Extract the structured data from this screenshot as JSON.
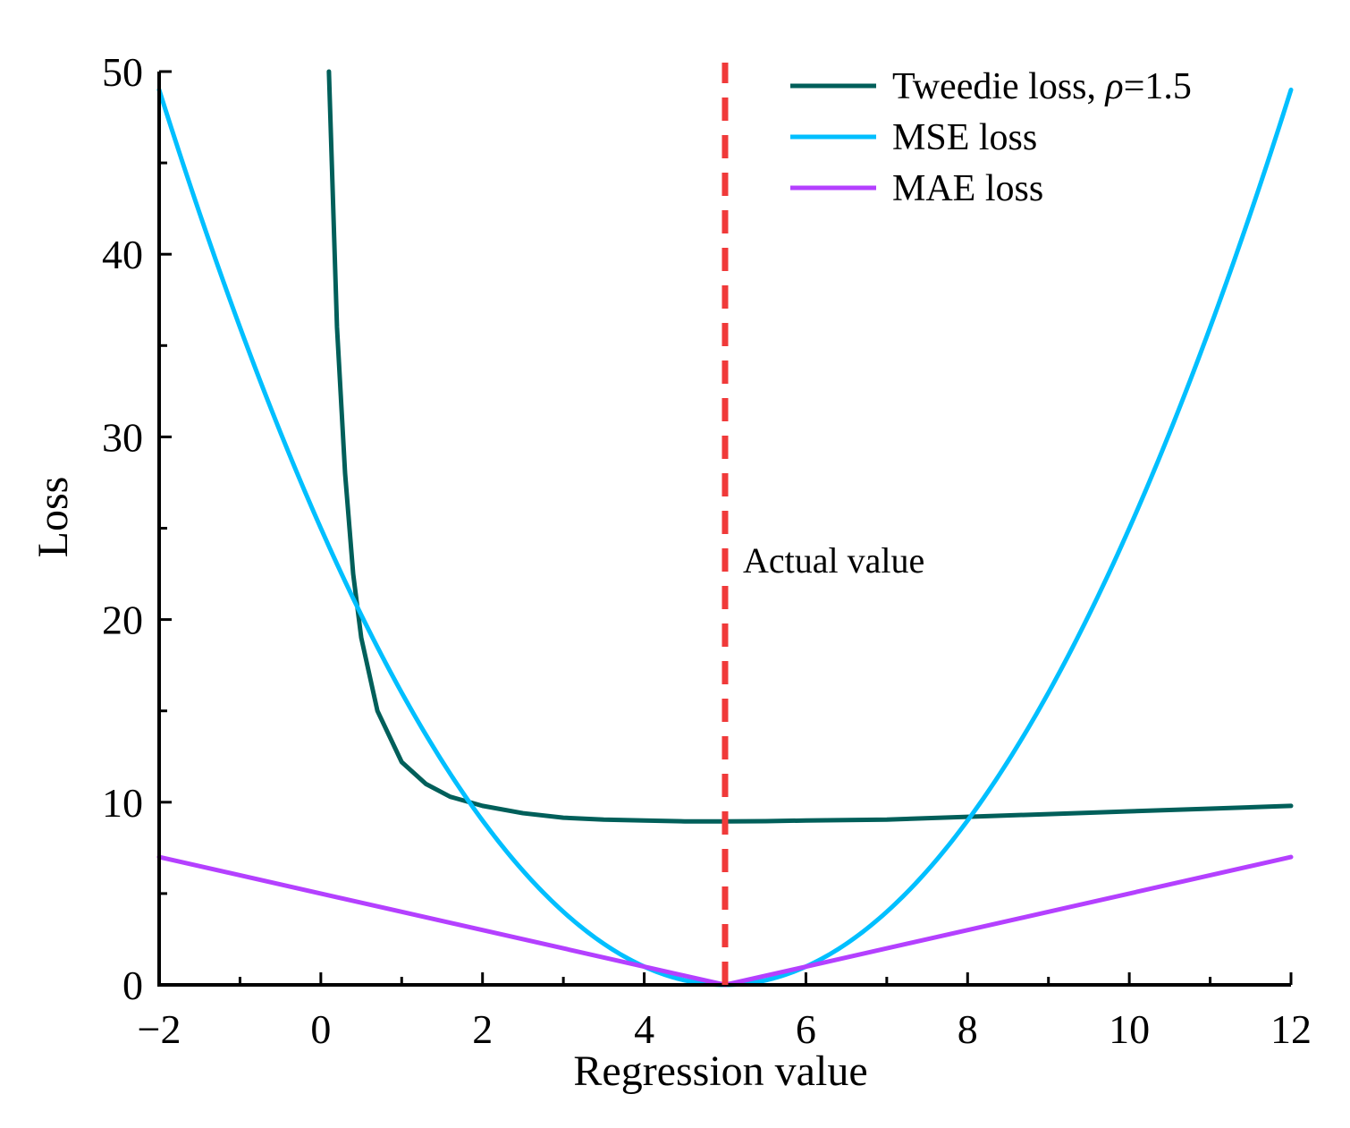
{
  "chart_data": {
    "type": "line",
    "title": "",
    "xlabel": "Regression value",
    "ylabel": "Loss",
    "xlim": [
      -2,
      12
    ],
    "ylim": [
      0,
      50
    ],
    "x_ticks": [
      -2,
      0,
      2,
      4,
      6,
      8,
      10,
      12
    ],
    "x_tick_labels": [
      "−2",
      "0",
      "2",
      "4",
      "6",
      "8",
      "10",
      "12"
    ],
    "y_ticks": [
      0,
      10,
      20,
      30,
      40,
      50
    ],
    "y_tick_labels": [
      "0",
      "10",
      "20",
      "30",
      "40",
      "50"
    ],
    "x_minor_step": 1,
    "y_minor_step": 5,
    "grid": false,
    "legend_position": "top-right",
    "series": [
      {
        "name": "Tweedie loss, ρ=1.5",
        "legend_main": "Tweedie loss, ",
        "legend_symbol": "ρ",
        "legend_suffix": "=1.5",
        "color": "#005f5a",
        "x": [
          0.1,
          0.2,
          0.3,
          0.4,
          0.5,
          0.7,
          1.0,
          1.3,
          1.6,
          2.0,
          2.5,
          3.0,
          3.5,
          4.0,
          4.5,
          5.0,
          5.5,
          6.0,
          7.0,
          8.0,
          9.0,
          10.0,
          11.0,
          12.0
        ],
        "y": [
          50,
          36,
          28,
          22.5,
          19,
          15,
          12.2,
          11,
          10.3,
          9.8,
          9.4,
          9.15,
          9.05,
          9.0,
          8.95,
          8.95,
          8.96,
          9.0,
          9.05,
          9.2,
          9.35,
          9.5,
          9.65,
          9.8
        ]
      },
      {
        "name": "MSE loss",
        "color": "#00bfff",
        "formula": "(x-5)^2",
        "x": [
          -2,
          -1,
          0,
          1,
          2,
          3,
          4,
          5,
          6,
          7,
          8,
          9,
          10,
          11,
          12
        ],
        "y": [
          49,
          36,
          25,
          16,
          9,
          4,
          1,
          0,
          1,
          4,
          9,
          16,
          25,
          36,
          49
        ]
      },
      {
        "name": "MAE loss",
        "color": "#b440ff",
        "formula": "|x-5|",
        "x": [
          -2,
          5,
          12
        ],
        "y": [
          7,
          0,
          7
        ]
      }
    ],
    "reference_line": {
      "orientation": "vertical",
      "x": 5,
      "color": "#f03a3a",
      "style": "dashed",
      "label": "Actual value"
    }
  }
}
